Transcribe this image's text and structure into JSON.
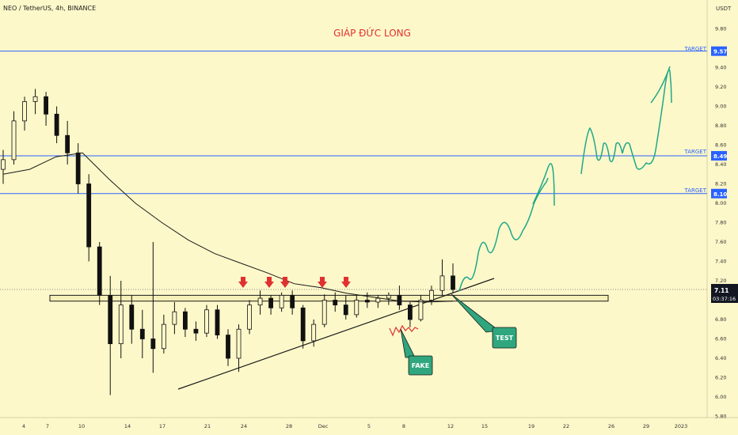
{
  "header": {
    "symbol_line": "NEO / TetherUS, 4h, BINANCE",
    "title": "GIÁP ĐỨC LONG"
  },
  "annotations": {
    "target": "TARGET",
    "fake": "FAKE",
    "test": "TEST"
  },
  "price_badge": {
    "value": "7.11",
    "countdown": "03:37:16",
    "color": "#131722"
  },
  "colors": {
    "background": "#fdf8c9",
    "bull_candle": "#000000",
    "bear_candle": "#000000",
    "target_line": "#2962ff",
    "forecast": "#1ea889",
    "arrow": "#e03131",
    "fake_wave": "#e03131",
    "callout_fill": "#2fa67e",
    "zone_fill": "#f5f0b8"
  },
  "chart_data": {
    "type": "candlestick",
    "title": "NEO / TetherUS, 4h, BINANCE",
    "y_axis": {
      "unit_label": "USDT",
      "ylim": [
        5.77,
        10.2
      ],
      "ticks": [
        "9.80",
        "9.40",
        "9.20",
        "9.00",
        "8.80",
        "8.60",
        "8.40",
        "8.20",
        "8.00",
        "7.80",
        "7.60",
        "7.40",
        "7.20",
        "6.80",
        "6.60",
        "6.40",
        "6.20",
        "6.00",
        "5.80"
      ]
    },
    "x_axis": {
      "ticks": [
        "4",
        "7",
        "10",
        "14",
        "17",
        "21",
        "24",
        "28",
        "Dec",
        "5",
        "8",
        "12",
        "15",
        "19",
        "22",
        "26",
        "29",
        "2023"
      ]
    },
    "last_price": 7.11,
    "targets": [
      {
        "label": "TARGET",
        "price": 9.57
      },
      {
        "label": "TARGET",
        "price": 8.49
      },
      {
        "label": "TARGET",
        "price": 8.1
      }
    ],
    "support_zone": {
      "low": 6.99,
      "high": 7.05
    },
    "moving_average": [
      {
        "date": "Nov 1",
        "y": 8.3
      },
      {
        "date": "Nov 3",
        "y": 8.35
      },
      {
        "date": "Nov 5",
        "y": 8.48
      },
      {
        "date": "Nov 7",
        "y": 8.52
      },
      {
        "date": "Nov 9",
        "y": 8.25
      },
      {
        "date": "Nov 11",
        "y": 8.0
      },
      {
        "date": "Nov 13",
        "y": 7.8
      },
      {
        "date": "Nov 15",
        "y": 7.62
      },
      {
        "date": "Nov 17",
        "y": 7.48
      },
      {
        "date": "Nov 19",
        "y": 7.38
      },
      {
        "date": "Nov 21",
        "y": 7.28
      },
      {
        "date": "Nov 23",
        "y": 7.17
      },
      {
        "date": "Nov 25",
        "y": 7.13
      },
      {
        "date": "Nov 28",
        "y": 7.07
      },
      {
        "date": "Dec 1",
        "y": 7.03
      },
      {
        "date": "Dec 5",
        "y": 6.99
      },
      {
        "date": "Dec 8",
        "y": 6.98
      },
      {
        "date": "Dec 12",
        "y": 6.99
      }
    ],
    "candles": [
      {
        "date": "Nov 1",
        "o": 8.35,
        "h": 8.55,
        "l": 8.2,
        "c": 8.45
      },
      {
        "date": "Nov 2",
        "o": 8.45,
        "h": 8.95,
        "l": 8.4,
        "c": 8.85
      },
      {
        "date": "Nov 3",
        "o": 8.85,
        "h": 9.1,
        "l": 8.75,
        "c": 9.05
      },
      {
        "date": "Nov 4",
        "o": 9.05,
        "h": 9.18,
        "l": 8.92,
        "c": 9.1
      },
      {
        "date": "Nov 5",
        "o": 9.1,
        "h": 9.15,
        "l": 8.8,
        "c": 8.92
      },
      {
        "date": "Nov 6",
        "o": 8.92,
        "h": 9.0,
        "l": 8.62,
        "c": 8.7
      },
      {
        "date": "Nov 7",
        "o": 8.7,
        "h": 8.85,
        "l": 8.4,
        "c": 8.52
      },
      {
        "date": "Nov 8",
        "o": 8.52,
        "h": 8.62,
        "l": 8.1,
        "c": 8.2
      },
      {
        "date": "Nov 9",
        "o": 8.2,
        "h": 8.3,
        "l": 7.4,
        "c": 7.55
      },
      {
        "date": "Nov 9b",
        "o": 7.55,
        "h": 7.6,
        "l": 6.95,
        "c": 7.05
      },
      {
        "date": "Nov 10",
        "o": 7.05,
        "h": 7.25,
        "l": 6.02,
        "c": 6.55
      },
      {
        "date": "Nov 11",
        "o": 6.55,
        "h": 7.2,
        "l": 6.4,
        "c": 6.95
      },
      {
        "date": "Nov 12",
        "o": 6.95,
        "h": 7.05,
        "l": 6.55,
        "c": 6.7
      },
      {
        "date": "Nov 13",
        "o": 6.7,
        "h": 6.9,
        "l": 6.4,
        "c": 6.6
      },
      {
        "date": "Nov 14",
        "o": 6.6,
        "h": 7.6,
        "l": 6.25,
        "c": 6.5
      },
      {
        "date": "Nov 15",
        "o": 6.5,
        "h": 6.85,
        "l": 6.45,
        "c": 6.75
      },
      {
        "date": "Nov 16",
        "o": 6.75,
        "h": 6.98,
        "l": 6.65,
        "c": 6.88
      },
      {
        "date": "Nov 17",
        "o": 6.88,
        "h": 6.92,
        "l": 6.62,
        "c": 6.7
      },
      {
        "date": "Nov 18",
        "o": 6.7,
        "h": 6.78,
        "l": 6.58,
        "c": 6.66
      },
      {
        "date": "Nov 19",
        "o": 6.66,
        "h": 6.95,
        "l": 6.62,
        "c": 6.9
      },
      {
        "date": "Nov 20",
        "o": 6.9,
        "h": 6.95,
        "l": 6.6,
        "c": 6.64
      },
      {
        "date": "Nov 21",
        "o": 6.64,
        "h": 6.7,
        "l": 6.32,
        "c": 6.4
      },
      {
        "date": "Nov 22",
        "o": 6.4,
        "h": 6.75,
        "l": 6.26,
        "c": 6.7
      },
      {
        "date": "Nov 23",
        "o": 6.7,
        "h": 7.0,
        "l": 6.65,
        "c": 6.95
      },
      {
        "date": "Nov 24",
        "o": 6.95,
        "h": 7.1,
        "l": 6.85,
        "c": 7.02
      },
      {
        "date": "Nov 25",
        "o": 7.02,
        "h": 7.05,
        "l": 6.85,
        "c": 6.92
      },
      {
        "date": "Nov 26",
        "o": 6.92,
        "h": 7.08,
        "l": 6.88,
        "c": 7.05
      },
      {
        "date": "Nov 27",
        "o": 7.05,
        "h": 7.1,
        "l": 6.85,
        "c": 6.92
      },
      {
        "date": "Nov 28",
        "o": 6.92,
        "h": 6.95,
        "l": 6.5,
        "c": 6.58
      },
      {
        "date": "Nov 29",
        "o": 6.58,
        "h": 6.8,
        "l": 6.52,
        "c": 6.75
      },
      {
        "date": "Nov 30",
        "o": 6.75,
        "h": 7.06,
        "l": 6.72,
        "c": 7.0
      },
      {
        "date": "Dec 1",
        "o": 7.0,
        "h": 7.08,
        "l": 6.88,
        "c": 6.95
      },
      {
        "date": "Dec 2",
        "o": 6.95,
        "h": 7.05,
        "l": 6.8,
        "c": 6.85
      },
      {
        "date": "Dec 3",
        "o": 6.85,
        "h": 7.05,
        "l": 6.82,
        "c": 7.0
      },
      {
        "date": "Dec 4",
        "o": 7.0,
        "h": 7.08,
        "l": 6.92,
        "c": 6.98
      },
      {
        "date": "Dec 5",
        "o": 6.98,
        "h": 7.05,
        "l": 6.92,
        "c": 7.02
      },
      {
        "date": "Dec 6",
        "o": 7.02,
        "h": 7.08,
        "l": 6.95,
        "c": 7.05
      },
      {
        "date": "Dec 7",
        "o": 7.05,
        "h": 7.15,
        "l": 6.9,
        "c": 6.95
      },
      {
        "date": "Dec 8",
        "o": 6.95,
        "h": 6.98,
        "l": 6.72,
        "c": 6.8
      },
      {
        "date": "Dec 9",
        "o": 6.8,
        "h": 7.05,
        "l": 6.78,
        "c": 7.0
      },
      {
        "date": "Dec 10",
        "o": 7.0,
        "h": 7.15,
        "l": 6.95,
        "c": 7.1
      },
      {
        "date": "Dec 11",
        "o": 7.1,
        "h": 7.42,
        "l": 7.05,
        "c": 7.25
      },
      {
        "date": "Dec 12",
        "o": 7.25,
        "h": 7.38,
        "l": 7.08,
        "c": 7.11
      }
    ]
  }
}
